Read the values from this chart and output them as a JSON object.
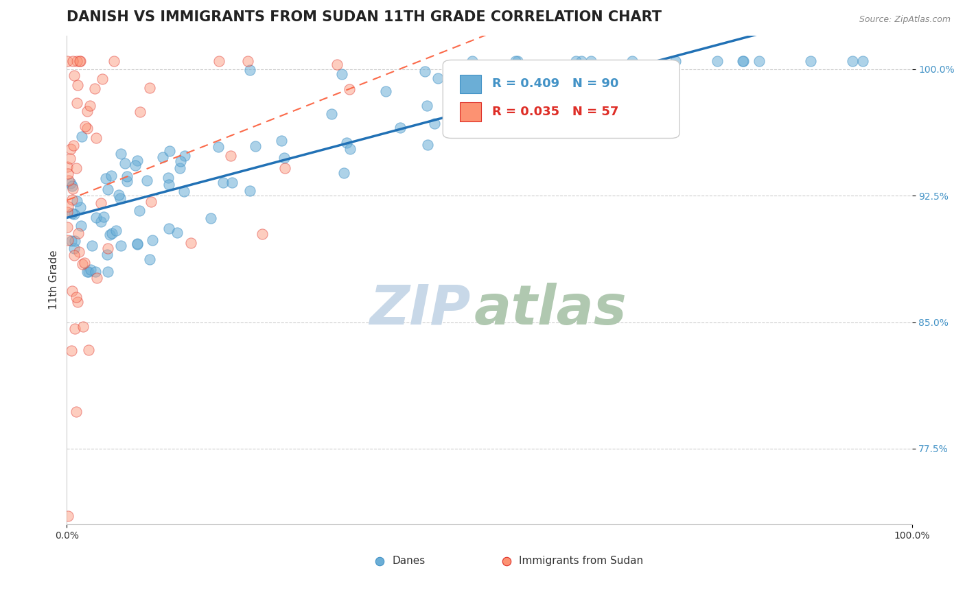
{
  "title": "DANISH VS IMMIGRANTS FROM SUDAN 11TH GRADE CORRELATION CHART",
  "source_text": "Source: ZipAtlas.com",
  "ylabel": "11th Grade",
  "xlim": [
    0.0,
    1.0
  ],
  "ylim": [
    0.73,
    1.02
  ],
  "yticks": [
    0.775,
    0.85,
    0.925,
    1.0
  ],
  "ytick_labels": [
    "77.5%",
    "85.0%",
    "92.5%",
    "100.0%"
  ],
  "legend_r_blue": "R = 0.409",
  "legend_n_blue": "N = 90",
  "legend_r_pink": "R = 0.035",
  "legend_n_pink": "N = 57",
  "legend_label_blue": "Danes",
  "legend_label_pink": "Immigrants from Sudan",
  "blue_color": "#6baed6",
  "blue_edge": "#4292c6",
  "blue_line_color": "#2171b5",
  "pink_color": "#fc9272",
  "pink_edge": "#de2d26",
  "pink_line_color": "#fb6a4a",
  "watermark_zip": "ZIP",
  "watermark_atlas": "atlas",
  "watermark_color_zip": "#c8d8e8",
  "watermark_color_atlas": "#b0c8b0",
  "blue_N": 90,
  "pink_N": 57,
  "title_fontsize": 15,
  "axis_label_fontsize": 11,
  "tick_fontsize": 10,
  "marker_size": 120
}
